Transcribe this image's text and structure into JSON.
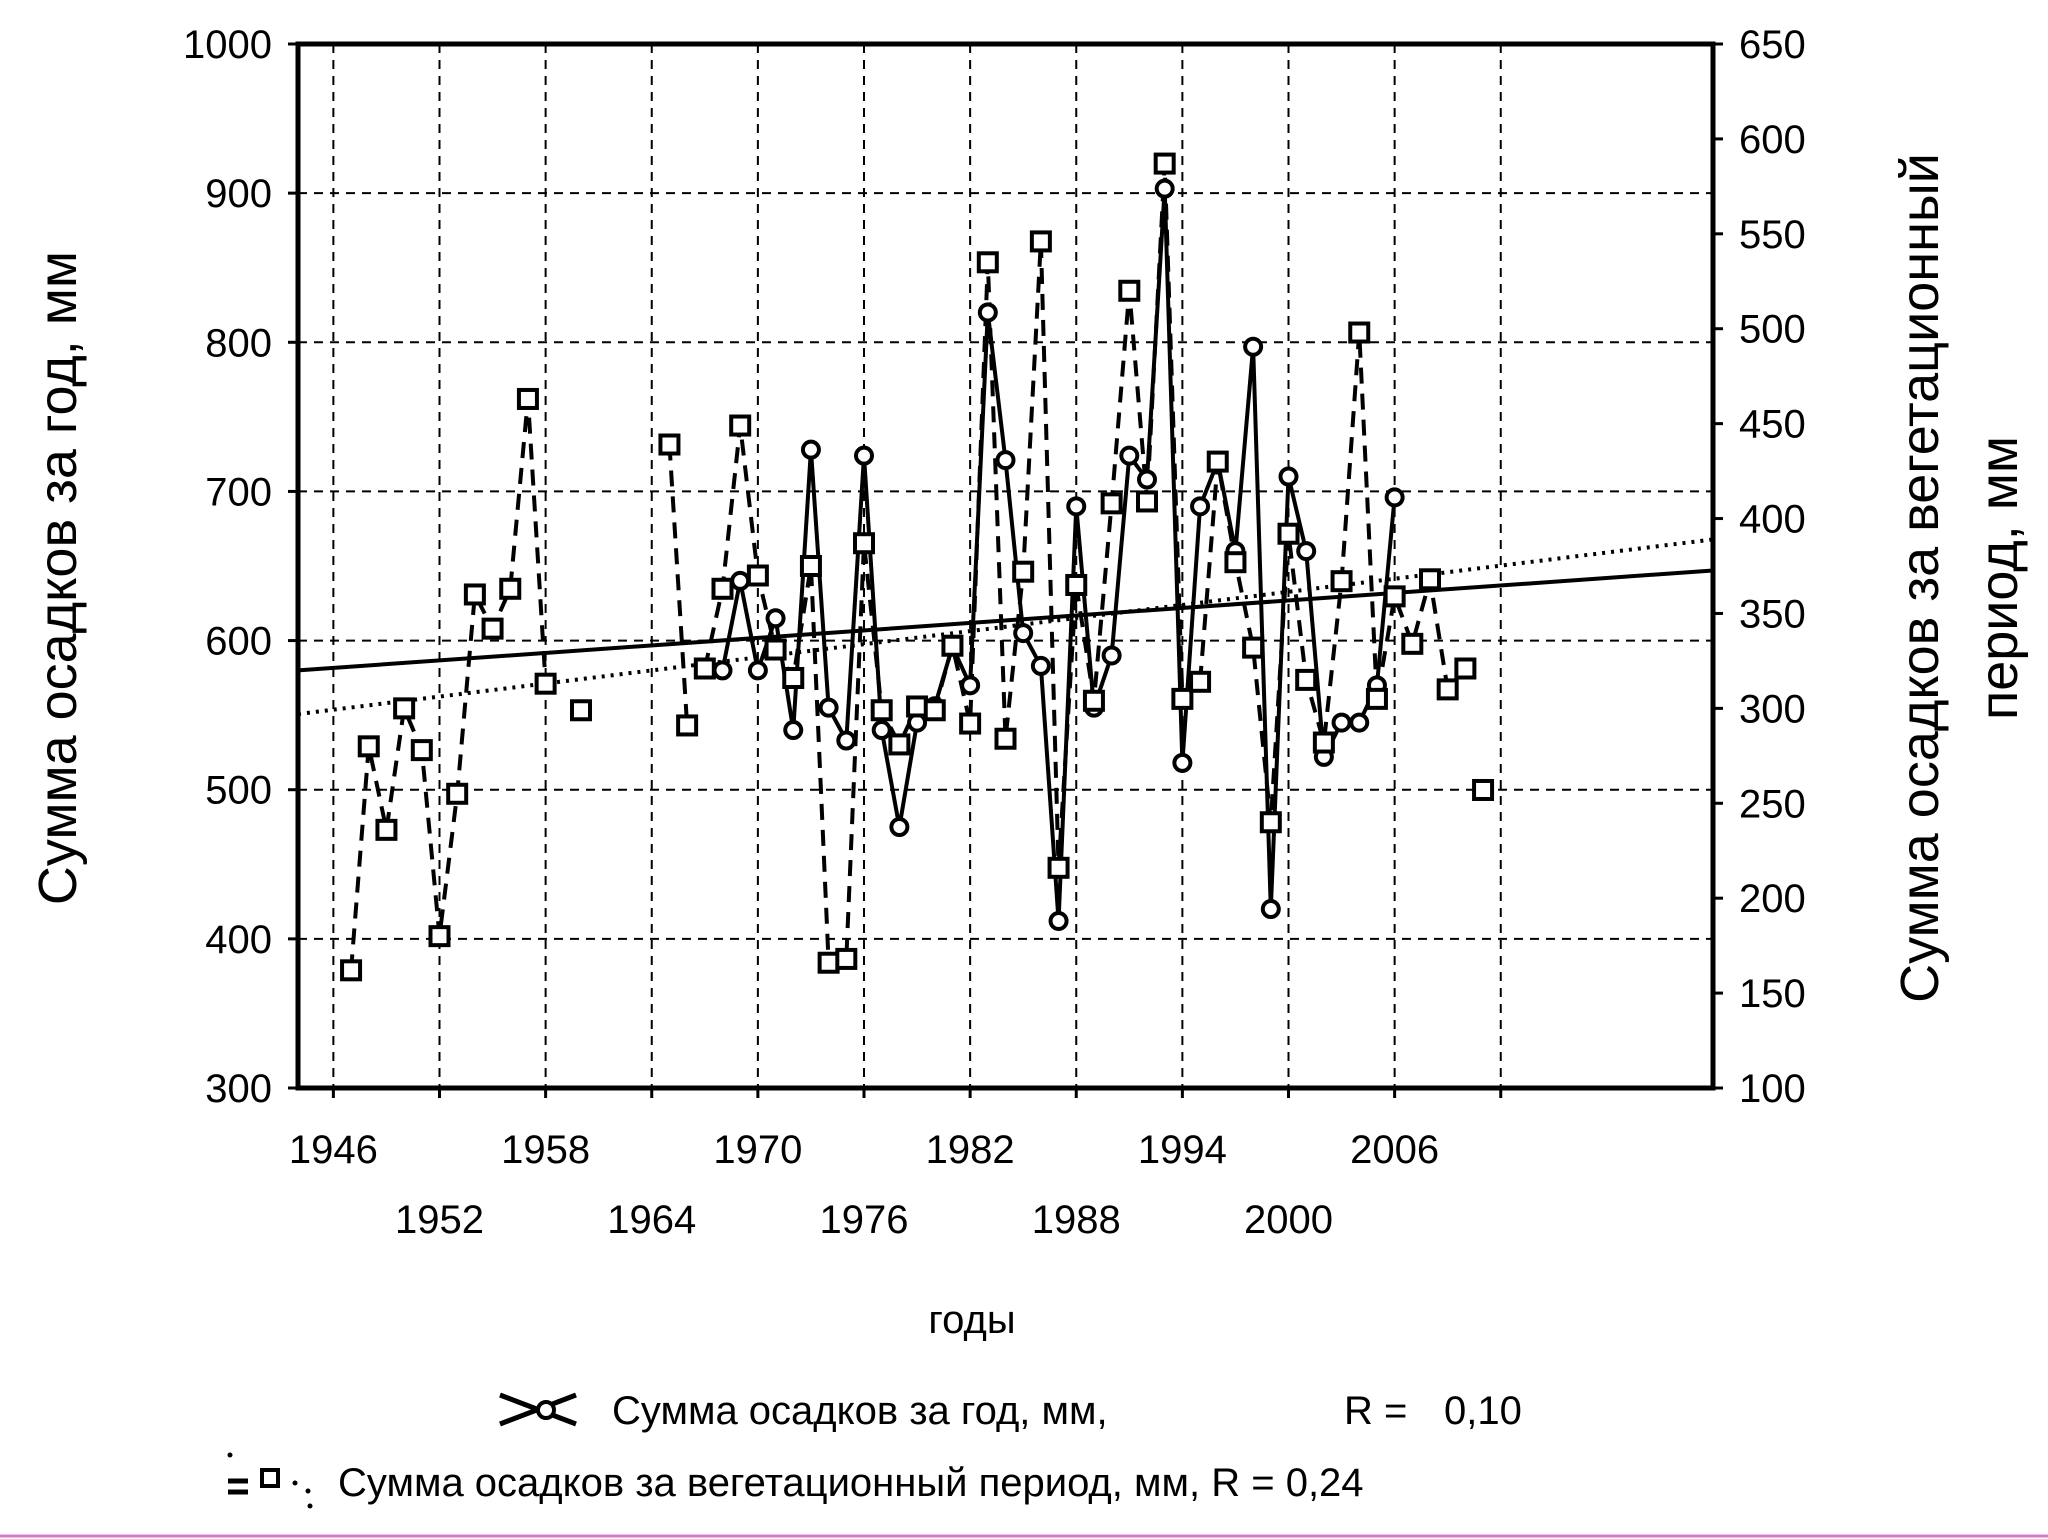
{
  "chart_data": {
    "type": "line",
    "xlabel": "годы",
    "ylabel_left": "Сумма осадков за год, мм",
    "ylabel_right": [
      "Сумма осадков за вегетационный",
      "период, мм"
    ],
    "x_ticks": [
      "1946",
      "1952",
      "1958",
      "1964",
      "1970",
      "1976",
      "1982",
      "1988",
      "1994",
      "2000",
      "2006"
    ],
    "xlim": [
      1944,
      2024
    ],
    "y_left_ticks": [
      "300",
      "400",
      "500",
      "600",
      "700",
      "800",
      "900",
      "1000"
    ],
    "y_left_lim": [
      300,
      1000
    ],
    "y_right_ticks": [
      "100",
      "150",
      "200",
      "250",
      "300",
      "350",
      "400",
      "450",
      "500",
      "550",
      "600",
      "650"
    ],
    "y_right_lim": [
      100,
      650
    ],
    "grid": true,
    "series": [
      {
        "name": "Сумма осадков за год, мм,",
        "axis": "left",
        "marker": "circle",
        "line": "solid",
        "segments": [
          {
            "x": [
              1968,
              1969,
              1970,
              1971,
              1972,
              1973,
              1974,
              1975,
              1976,
              1977,
              1978,
              1979,
              1980,
              1981,
              1982,
              1983,
              1984,
              1985,
              1986,
              1987,
              1988,
              1989,
              1990,
              1991,
              1992,
              1993,
              1994,
              1995,
              1996,
              1997,
              1998,
              1999,
              2000,
              2001,
              2002,
              2003,
              2004,
              2005,
              2006
            ],
            "y": [
              580,
              640,
              580,
              615,
              540,
              728,
              555,
              533,
              724,
              540,
              475,
              545,
              556,
              596,
              570,
              820,
              721,
              605,
              583,
              412,
              690,
              555,
              590,
              724,
              708,
              903,
              518,
              690,
              720,
              660,
              797,
              420,
              710,
              660,
              522,
              545,
              545,
              570,
              696
            ]
          }
        ]
      },
      {
        "name": "Сумма осадков за вегетационный период, мм,",
        "axis": "right",
        "marker": "square",
        "line": "dashed",
        "segments": [
          {
            "x": [
              1947,
              1948,
              1949,
              1950,
              1951,
              1952,
              1953,
              1954,
              1955,
              1956,
              1957,
              1958
            ],
            "y": [
              162,
              280,
              236,
              300,
              278,
              180,
              255,
              360,
              342,
              363,
              463,
              313
            ]
          },
          {
            "x": [
              1960
            ],
            "y": [
              299
            ]
          },
          {
            "x": [
              1965,
              1966
            ],
            "y": [
              439,
              291
            ]
          },
          {
            "x": [
              1967,
              1968,
              1969,
              1970,
              1971,
              1972,
              1973,
              1974,
              1975,
              1976,
              1977,
              1978,
              1979,
              1980,
              1981,
              1982,
              1983,
              1984,
              1985,
              1986,
              1987,
              1988,
              1989,
              1990,
              1991,
              1992,
              1993,
              1994,
              1995,
              1996,
              1997,
              1998,
              1999,
              2000,
              2001,
              2002,
              2003,
              2004,
              2005,
              2006,
              2007,
              2008,
              2009,
              2010
            ],
            "y": [
              321,
              363,
              449,
              370,
              331,
              316,
              375,
              166,
              168,
              387,
              299,
              281,
              301,
              299,
              333,
              292,
              535,
              284,
              372,
              546,
              216,
              365,
              304,
              408,
              520,
              409,
              587,
              305,
              314,
              430,
              377,
              332,
              240,
              392,
              315,
              282,
              367,
              498,
              305,
              359,
              334,
              368,
              310,
              321
            ]
          },
          {
            "x": [
              2011
            ],
            "y": [
              257
            ]
          }
        ]
      }
    ],
    "trendlines": [
      {
        "axis": "left",
        "style": "solid",
        "x": [
          1944,
          2024
        ],
        "y": [
          580,
          647
        ]
      },
      {
        "axis": "right",
        "style": "dotted",
        "x": [
          1944,
          2024
        ],
        "y": [
          297,
          389
        ]
      }
    ],
    "legend": {
      "placement": "bottom",
      "items": [
        {
          "label": "Сумма осадков за год, мм,",
          "r_label": "R =",
          "r_value": "0,10"
        },
        {
          "label": "Сумма осадков за вегетационный период, мм,  R = 0,24"
        }
      ]
    }
  }
}
